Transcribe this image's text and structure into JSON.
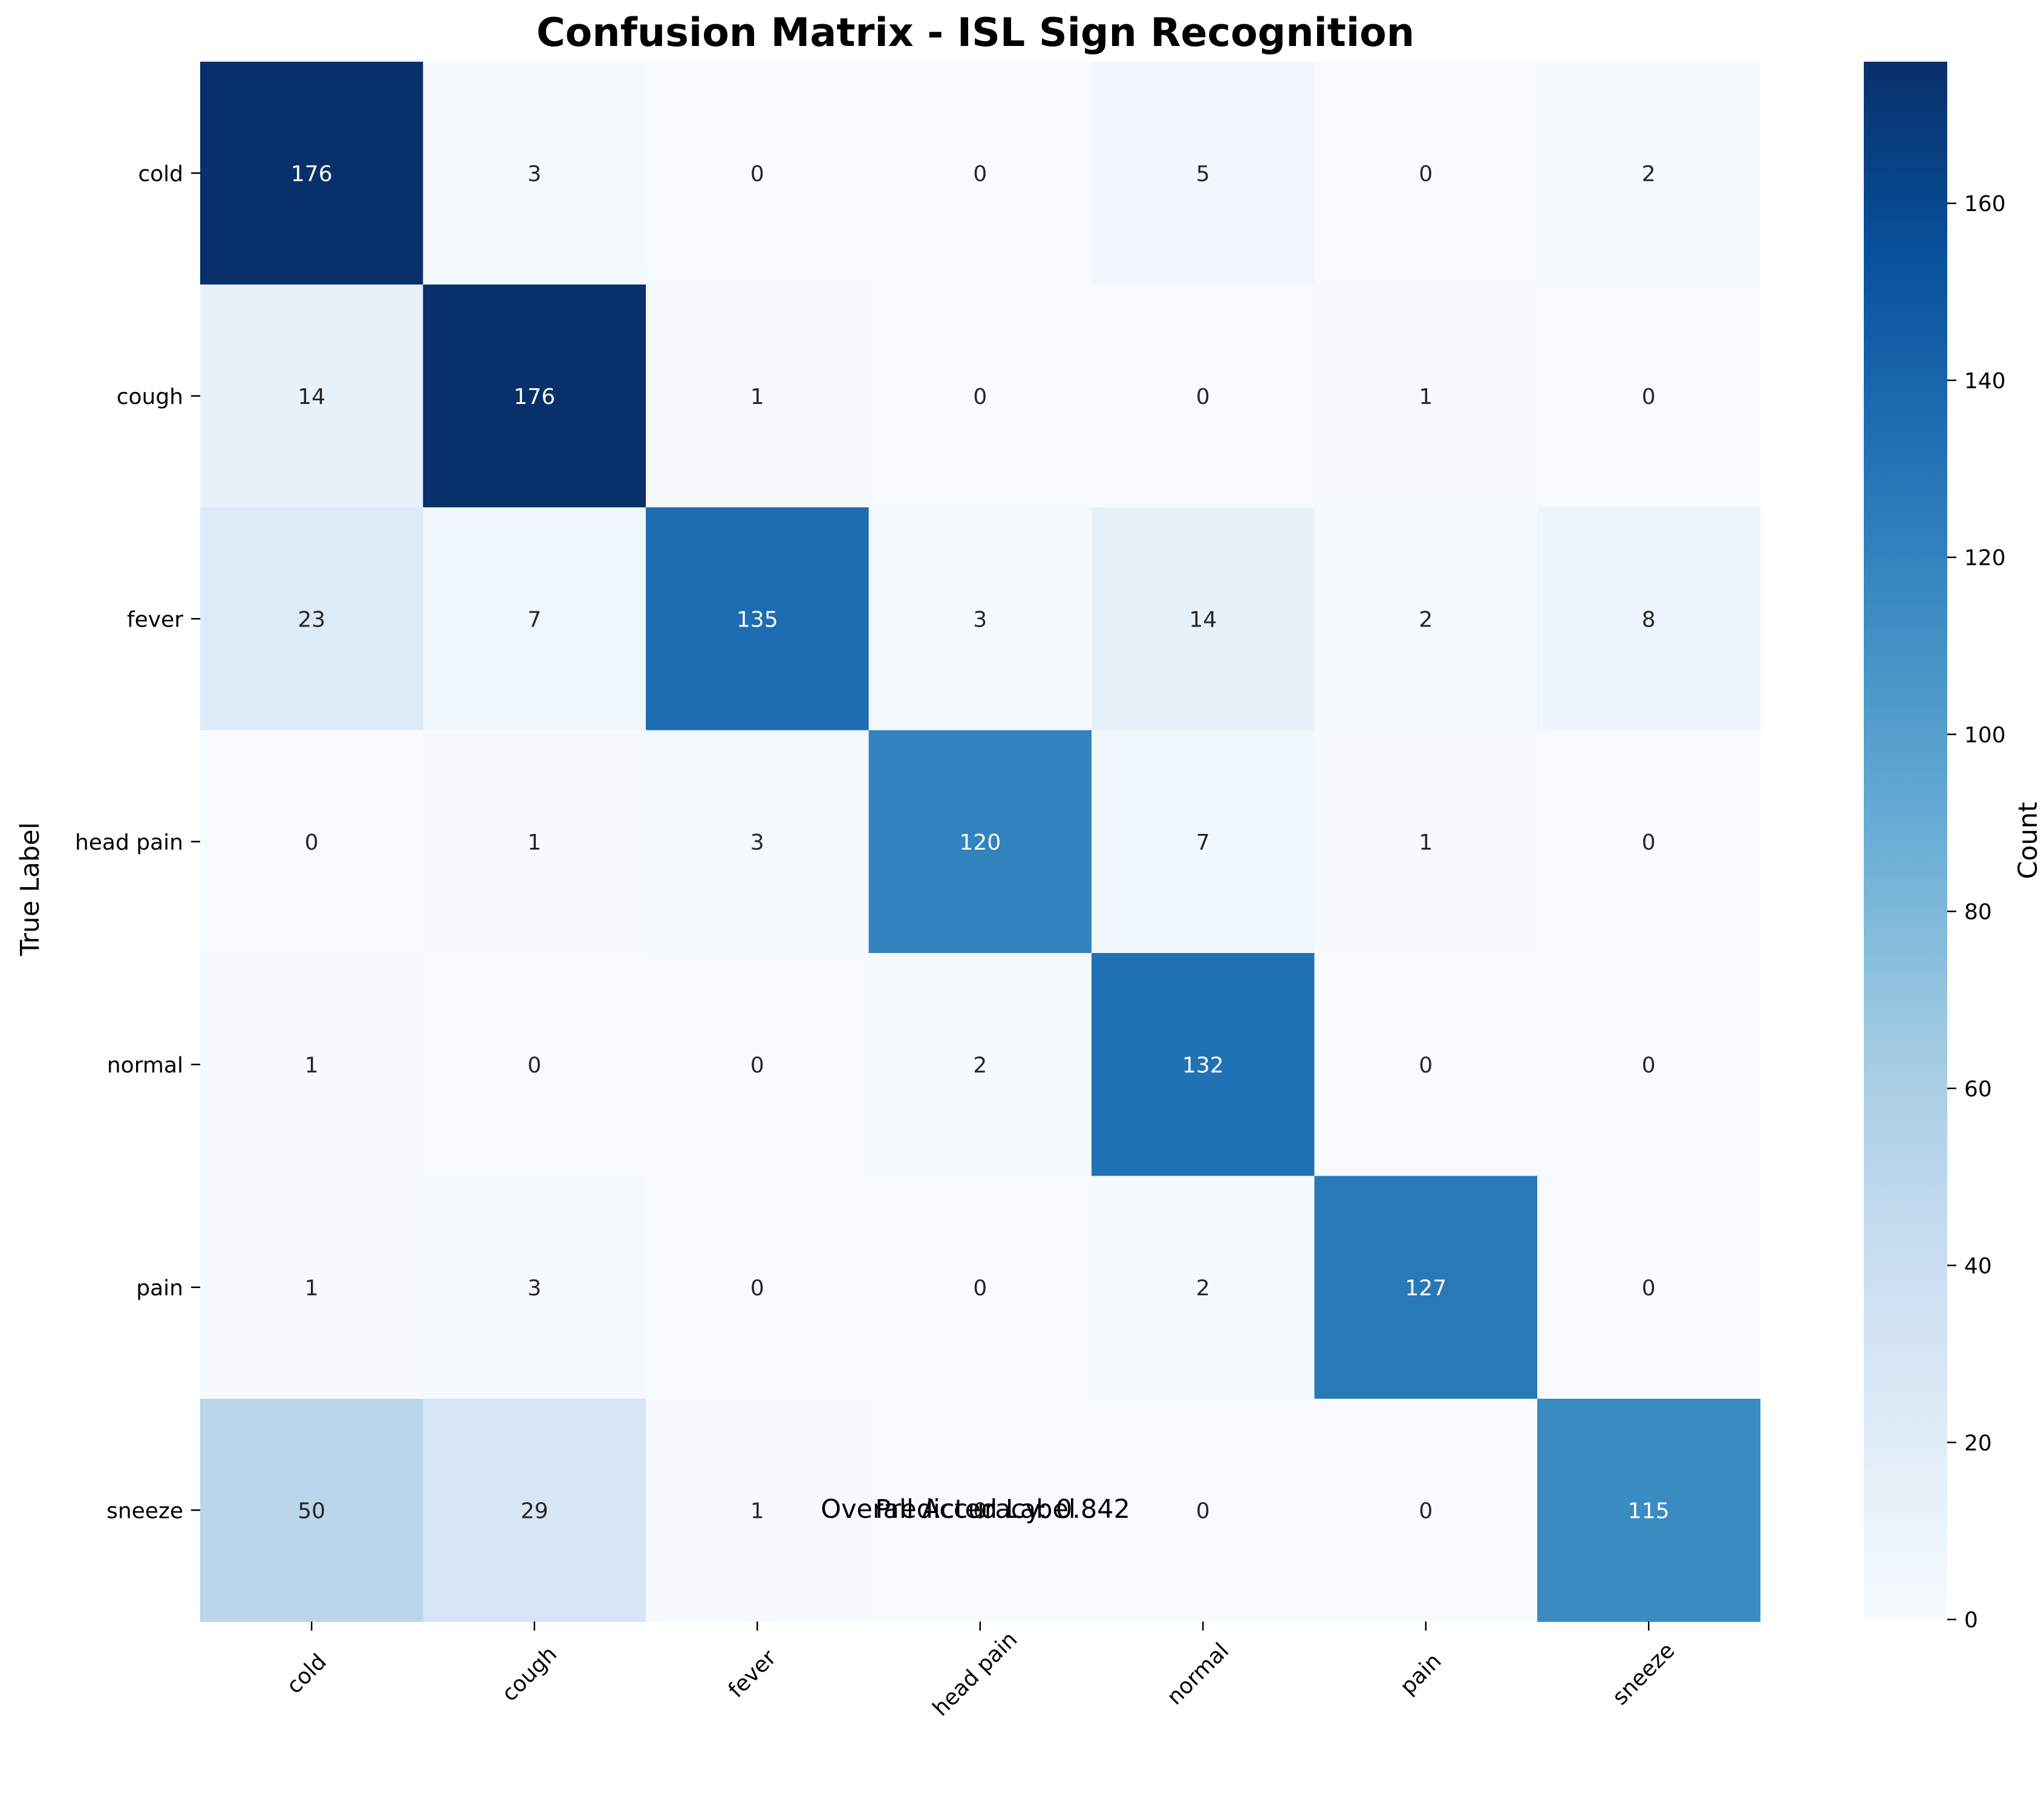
{
  "chart_data": {
    "type": "heatmap",
    "title": "Confusion Matrix - ISL Sign Recognition",
    "xlabel": "Predicted Label",
    "ylabel": "True Label",
    "footer": "Overall Accuracy: 0.842",
    "x_categories": [
      "cold",
      "cough",
      "fever",
      "head pain",
      "normal",
      "pain",
      "sneeze"
    ],
    "y_categories": [
      "cold",
      "cough",
      "fever",
      "head pain",
      "normal",
      "pain",
      "sneeze"
    ],
    "values": [
      [
        176,
        3,
        0,
        0,
        5,
        0,
        2
      ],
      [
        14,
        176,
        1,
        0,
        0,
        1,
        0
      ],
      [
        23,
        7,
        135,
        3,
        14,
        2,
        8
      ],
      [
        0,
        1,
        3,
        120,
        7,
        1,
        0
      ],
      [
        1,
        0,
        0,
        2,
        132,
        0,
        0
      ],
      [
        1,
        3,
        0,
        0,
        2,
        127,
        0
      ],
      [
        50,
        29,
        1,
        0,
        0,
        0,
        115
      ]
    ],
    "colorbar": {
      "label": "Count",
      "min": 0,
      "max": 176,
      "ticks": [
        0,
        20,
        40,
        60,
        80,
        100,
        120,
        140,
        160
      ]
    },
    "colormap": "Blues",
    "colormap_stops": [
      "#f7fbff",
      "#deebf7",
      "#c6dbef",
      "#9ecae1",
      "#6baed6",
      "#4292c6",
      "#2171b5",
      "#08519c",
      "#08306b"
    ],
    "x_tick_rotation": "45deg"
  }
}
